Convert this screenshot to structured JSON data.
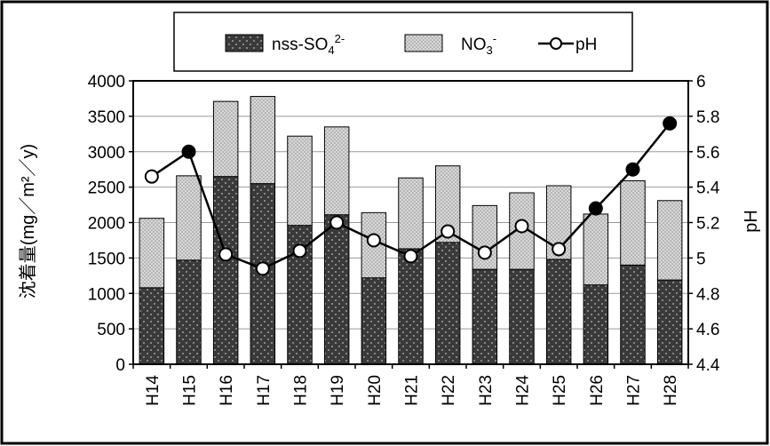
{
  "chart_data": {
    "type": "bar",
    "subtype": "stacked bar with line on secondary axis",
    "categories": [
      "H14",
      "H15",
      "H16",
      "H17",
      "H18",
      "H19",
      "H20",
      "H21",
      "H22",
      "H23",
      "H24",
      "H25",
      "H26",
      "H27",
      "H28"
    ],
    "series": [
      {
        "name": "nss-SO",
        "name_sub": "4",
        "name_sup": "2-",
        "kind": "bar",
        "axis": "left",
        "pattern": "dark-dotted",
        "values": [
          1080,
          1470,
          2650,
          2550,
          1960,
          2110,
          1220,
          1630,
          1720,
          1340,
          1340,
          1480,
          1120,
          1400,
          1190
        ]
      },
      {
        "name": "NO",
        "name_sub": "3",
        "name_sup": "-",
        "kind": "bar",
        "axis": "left",
        "pattern": "light-dotted",
        "values": [
          980,
          1190,
          1060,
          1230,
          1260,
          1240,
          920,
          1000,
          1080,
          900,
          1080,
          1040,
          1000,
          1190,
          1120
        ]
      },
      {
        "name": "pH",
        "kind": "line",
        "axis": "right",
        "values": [
          5.46,
          5.6,
          5.02,
          4.94,
          5.04,
          5.2,
          5.1,
          5.01,
          5.15,
          5.03,
          5.18,
          5.05,
          5.28,
          5.5,
          5.76
        ]
      }
    ],
    "ylabel_left": "沈着量(mg／m²／y)",
    "ylabel_right": "pH",
    "ylim_left": [
      0,
      4000
    ],
    "yticks_left": [
      "0",
      "500",
      "1000",
      "1500",
      "2000",
      "2500",
      "3000",
      "3500",
      "4000"
    ],
    "ylim_right": [
      4.4,
      6.0
    ],
    "yticks_right": [
      "4.4",
      "4.6",
      "4.8",
      "5",
      "5.2",
      "5.4",
      "5.6",
      "5.8",
      "6"
    ],
    "grid": "horizontal",
    "legend_position": "top-center",
    "colors": {
      "so4_fill": "#3a3a3a",
      "no3_fill": "#cfcfcf",
      "line": "#000000",
      "marker_fill": "#ffffff"
    }
  }
}
